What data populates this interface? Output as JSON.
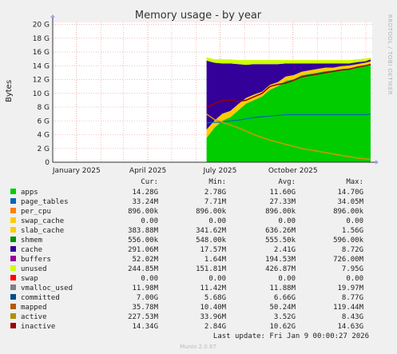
{
  "chart_data": {
    "type": "area",
    "title": "Memory usage - by year",
    "ylabel": "Bytes",
    "side_label": "RRDTOOL / TOBI OETIKER",
    "yticks": [
      {
        "v": 0,
        "label": "0"
      },
      {
        "v": 2,
        "label": "2 G"
      },
      {
        "v": 4,
        "label": "4 G"
      },
      {
        "v": 6,
        "label": "6 G"
      },
      {
        "v": 8,
        "label": "8 G"
      },
      {
        "v": 10,
        "label": "10 G"
      },
      {
        "v": 12,
        "label": "12 G"
      },
      {
        "v": 14,
        "label": "14 G"
      },
      {
        "v": 16,
        "label": "16 G"
      },
      {
        "v": 18,
        "label": "18 G"
      },
      {
        "v": 20,
        "label": "20 G"
      }
    ],
    "ylim": [
      0,
      20.3
    ],
    "xticks": [
      {
        "date": "2025-01-01",
        "label": "January 2025"
      },
      {
        "date": "2025-04-01",
        "label": "April 2025"
      },
      {
        "date": "2025-07-01",
        "label": "July 2025"
      },
      {
        "date": "2025-10-01",
        "label": "October 2025"
      }
    ],
    "xlim": [
      "2024-12-02",
      "2026-01-09"
    ],
    "data_start": "2025-06-14",
    "x": [
      "2025-06-14",
      "2025-06-24",
      "2025-07-04",
      "2025-07-14",
      "2025-07-24",
      "2025-08-03",
      "2025-08-13",
      "2025-08-23",
      "2025-09-02",
      "2025-09-12",
      "2025-09-22",
      "2025-10-02",
      "2025-10-12",
      "2025-10-22",
      "2025-11-01",
      "2025-11-11",
      "2025-11-21",
      "2025-12-01",
      "2025-12-11",
      "2025-12-21",
      "2025-12-31",
      "2026-01-07"
    ],
    "stack": [
      {
        "name": "apps",
        "color": "#00cc00",
        "values": [
          3.5,
          5.0,
          6.0,
          6.5,
          7.5,
          8.5,
          9.0,
          9.5,
          10.5,
          11.0,
          11.8,
          12.0,
          12.6,
          12.8,
          13.0,
          13.2,
          13.3,
          13.5,
          13.6,
          13.8,
          14.0,
          14.2
        ]
      },
      {
        "name": "page_tables",
        "color": "#0066b3",
        "values": [
          0.03,
          0.03,
          0.03,
          0.03,
          0.03,
          0.03,
          0.03,
          0.03,
          0.03,
          0.03,
          0.03,
          0.03,
          0.03,
          0.03,
          0.03,
          0.03,
          0.03,
          0.03,
          0.03,
          0.03,
          0.03,
          0.03
        ]
      },
      {
        "name": "per_cpu",
        "color": "#ff8000",
        "values": [
          0.01,
          0.01,
          0.01,
          0.01,
          0.01,
          0.01,
          0.01,
          0.01,
          0.01,
          0.01,
          0.01,
          0.01,
          0.01,
          0.01,
          0.01,
          0.01,
          0.01,
          0.01,
          0.01,
          0.01,
          0.01,
          0.01
        ]
      },
      {
        "name": "slab_cache",
        "color": "#ffcc00",
        "values": [
          1.2,
          1.0,
          1.0,
          0.9,
          0.9,
          0.8,
          0.8,
          0.7,
          0.7,
          0.6,
          0.6,
          0.6,
          0.5,
          0.5,
          0.5,
          0.5,
          0.4,
          0.4,
          0.4,
          0.4,
          0.4,
          0.4
        ]
      },
      {
        "name": "cache",
        "color": "#330099",
        "values": [
          10.0,
          8.4,
          7.3,
          6.9,
          5.8,
          4.8,
          4.4,
          4.0,
          3.0,
          2.6,
          1.9,
          1.7,
          1.2,
          1.0,
          0.8,
          0.6,
          0.6,
          0.4,
          0.3,
          0.3,
          0.2,
          0.3
        ]
      },
      {
        "name": "unused",
        "color": "#ccff00",
        "values": [
          0.5,
          0.5,
          0.6,
          0.6,
          0.6,
          0.7,
          0.6,
          0.6,
          0.6,
          0.6,
          0.5,
          0.5,
          0.5,
          0.5,
          0.5,
          0.5,
          0.5,
          0.5,
          0.5,
          0.4,
          0.4,
          0.25
        ]
      }
    ],
    "lines": [
      {
        "name": "committed",
        "color": "#0066b3",
        "values": [
          5.7,
          5.8,
          5.8,
          6.0,
          6.1,
          6.3,
          6.5,
          6.6,
          6.7,
          6.8,
          6.9,
          6.9,
          6.9,
          6.9,
          6.9,
          6.9,
          6.9,
          6.9,
          6.9,
          6.9,
          6.9,
          7.0
        ]
      },
      {
        "name": "active",
        "color": "#cc9900",
        "values": [
          7.0,
          6.2,
          5.8,
          5.4,
          5.0,
          4.5,
          4.0,
          3.6,
          3.2,
          2.9,
          2.6,
          2.3,
          2.0,
          1.8,
          1.6,
          1.4,
          1.2,
          1.0,
          0.8,
          0.6,
          0.5,
          0.4
        ]
      },
      {
        "name": "inactive",
        "color": "#990000",
        "values": [
          8.0,
          8.5,
          9.0,
          9.0,
          8.8,
          9.0,
          9.5,
          10.0,
          11.0,
          11.3,
          11.5,
          11.9,
          12.4,
          12.6,
          12.8,
          13.0,
          13.2,
          13.4,
          13.5,
          13.8,
          14.0,
          14.2
        ]
      }
    ]
  },
  "legend": {
    "headers": [
      "Cur:",
      "Min:",
      "Avg:",
      "Max:"
    ],
    "rows": [
      {
        "name": "apps",
        "color": "#00cc00",
        "cur": "14.28G",
        "min": "2.78G",
        "avg": "11.60G",
        "max": "14.70G"
      },
      {
        "name": "page_tables",
        "color": "#0066b3",
        "cur": "33.24M",
        "min": "7.71M",
        "avg": "27.33M",
        "max": "34.05M"
      },
      {
        "name": "per_cpu",
        "color": "#ff8000",
        "cur": "896.00k",
        "min": "896.00k",
        "avg": "896.00k",
        "max": "896.00k"
      },
      {
        "name": "swap_cache",
        "color": "#ffcc00",
        "cur": "0.00",
        "min": "0.00",
        "avg": "0.00",
        "max": "0.00"
      },
      {
        "name": "slab_cache",
        "color": "#ffcc00",
        "cur": "383.88M",
        "min": "341.62M",
        "avg": "636.26M",
        "max": "1.56G"
      },
      {
        "name": "shmem",
        "color": "#008f00",
        "cur": "556.00k",
        "min": "548.00k",
        "avg": "555.50k",
        "max": "596.00k"
      },
      {
        "name": "cache",
        "color": "#330099",
        "cur": "291.06M",
        "min": "17.57M",
        "avg": "2.41G",
        "max": "8.72G"
      },
      {
        "name": "buffers",
        "color": "#990099",
        "cur": "52.02M",
        "min": "1.64M",
        "avg": "194.53M",
        "max": "726.00M"
      },
      {
        "name": "unused",
        "color": "#ccff00",
        "cur": "244.85M",
        "min": "151.81M",
        "avg": "426.87M",
        "max": "7.95G"
      },
      {
        "name": "swap",
        "color": "#ff0000",
        "cur": "0.00",
        "min": "0.00",
        "avg": "0.00",
        "max": "0.00"
      },
      {
        "name": "vmalloc_used",
        "color": "#808080",
        "cur": "11.98M",
        "min": "11.42M",
        "avg": "11.88M",
        "max": "19.97M"
      },
      {
        "name": "committed",
        "color": "#004d86",
        "cur": "7.00G",
        "min": "5.68G",
        "avg": "6.66G",
        "max": "8.77G"
      },
      {
        "name": "mapped",
        "color": "#b35a00",
        "cur": "35.78M",
        "min": "10.40M",
        "avg": "50.24M",
        "max": "119.44M"
      },
      {
        "name": "active",
        "color": "#b38f00",
        "cur": "227.53M",
        "min": "33.96M",
        "avg": "3.52G",
        "max": "8.43G"
      },
      {
        "name": "inactive",
        "color": "#990000",
        "cur": "14.34G",
        "min": "2.84G",
        "avg": "10.62G",
        "max": "14.63G"
      }
    ]
  },
  "last_update": "Last update: Fri Jan  9 00:00:27 2026",
  "munin_version": "Munin 2.0.67"
}
